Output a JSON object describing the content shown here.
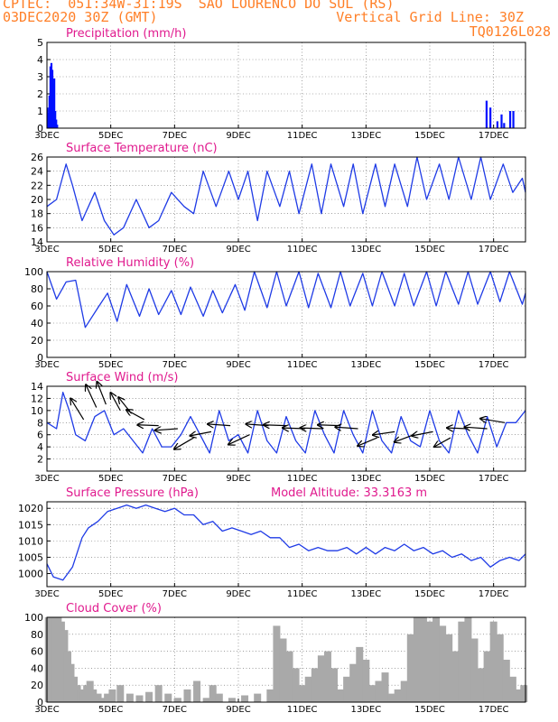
{
  "header": {
    "line1_left": "CPTEC:  051:34W-31:19S  SAO LOURENCO DO SUL (RS)",
    "line2_left": "03DEC2020 30Z (GMT)",
    "line2_right": "Vertical Grid Line: 30Z",
    "line3_right": "TQ0126L028"
  },
  "colors": {
    "header": "#ff7f27",
    "title": "#e01a8e",
    "line": "#1f3be6",
    "bars": "#0010ff",
    "cloud": "#a9a9a9",
    "wind_arrow": "#000000"
  },
  "x_ticks": [
    "3DEC",
    "5DEC",
    "7DEC",
    "9DEC",
    "11DEC",
    "13DEC",
    "15DEC",
    "17DEC"
  ],
  "x_range_days": [
    0,
    15
  ],
  "chart_data": [
    {
      "type": "bar",
      "title": "Precipitation (mm/h)",
      "ylim": [
        0,
        5
      ],
      "yticks": [
        0,
        1,
        2,
        3,
        4,
        5
      ],
      "x": [
        0.02,
        0.05,
        0.08,
        0.11,
        0.14,
        0.17,
        0.2,
        0.23,
        0.26,
        0.29,
        0.32,
        13.78,
        13.9,
        14.12,
        14.25,
        14.33,
        14.52,
        14.62
      ],
      "values": [
        1.2,
        0.9,
        1.9,
        3.6,
        3.8,
        3.4,
        2.6,
        2.9,
        1.0,
        0.5,
        0.2,
        1.6,
        1.2,
        0.4,
        0.8,
        0.3,
        1.0,
        1.0
      ]
    },
    {
      "type": "line",
      "title": "Surface Temperature (nC)",
      "ylim": [
        14,
        26
      ],
      "yticks": [
        14,
        16,
        18,
        20,
        22,
        24,
        26
      ],
      "x": [
        0,
        0.3,
        0.6,
        0.8,
        1.1,
        1.5,
        1.8,
        2.1,
        2.4,
        2.8,
        3.2,
        3.5,
        3.9,
        4.3,
        4.6,
        4.9,
        5.3,
        5.7,
        6.0,
        6.3,
        6.6,
        6.9,
        7.3,
        7.6,
        7.9,
        8.3,
        8.6,
        8.9,
        9.3,
        9.6,
        9.9,
        10.3,
        10.6,
        10.9,
        11.3,
        11.6,
        11.9,
        12.3,
        12.6,
        12.9,
        13.3,
        13.6,
        13.9,
        14.3,
        14.6,
        14.9,
        15.0
      ],
      "values": [
        19,
        20,
        25,
        22,
        17,
        21,
        17,
        15,
        16,
        20,
        16,
        17,
        21,
        19,
        18,
        24,
        19,
        24,
        20,
        24,
        17,
        24,
        19,
        24,
        18,
        25,
        18,
        25,
        19,
        25,
        18,
        25,
        19,
        25,
        19,
        26,
        20,
        25,
        20,
        26,
        20,
        26,
        20,
        25,
        21,
        23,
        21
      ]
    },
    {
      "type": "line",
      "title": "Relative Humidity (%)",
      "ylim": [
        0,
        100
      ],
      "yticks": [
        0,
        20,
        40,
        60,
        80,
        100
      ],
      "x": [
        0,
        0.3,
        0.6,
        0.9,
        1.2,
        1.6,
        1.9,
        2.2,
        2.5,
        2.9,
        3.2,
        3.5,
        3.9,
        4.2,
        4.5,
        4.9,
        5.2,
        5.5,
        5.9,
        6.2,
        6.5,
        6.9,
        7.2,
        7.5,
        7.9,
        8.2,
        8.5,
        8.9,
        9.2,
        9.5,
        9.9,
        10.2,
        10.5,
        10.9,
        11.2,
        11.5,
        11.9,
        12.2,
        12.5,
        12.9,
        13.2,
        13.5,
        13.9,
        14.2,
        14.5,
        14.9,
        15.0
      ],
      "values": [
        100,
        68,
        88,
        90,
        35,
        58,
        75,
        42,
        85,
        48,
        80,
        50,
        78,
        50,
        82,
        48,
        78,
        52,
        85,
        55,
        100,
        58,
        100,
        60,
        100,
        58,
        98,
        58,
        100,
        60,
        98,
        60,
        100,
        60,
        98,
        60,
        100,
        60,
        100,
        62,
        100,
        62,
        100,
        65,
        100,
        62,
        75
      ]
    },
    {
      "type": "line",
      "title": "Surface Wind (m/s)",
      "ylim": [
        0,
        14
      ],
      "yticks": [
        2,
        4,
        6,
        8,
        10,
        12,
        14
      ],
      "x": [
        0,
        0.3,
        0.5,
        0.7,
        0.9,
        1.2,
        1.5,
        1.8,
        2.1,
        2.4,
        2.7,
        3.0,
        3.3,
        3.6,
        3.9,
        4.2,
        4.5,
        4.8,
        5.1,
        5.4,
        5.7,
        6.0,
        6.3,
        6.6,
        6.9,
        7.2,
        7.5,
        7.8,
        8.1,
        8.4,
        8.7,
        9.0,
        9.3,
        9.6,
        9.9,
        10.2,
        10.5,
        10.8,
        11.1,
        11.4,
        11.7,
        12.0,
        12.3,
        12.6,
        12.9,
        13.2,
        13.5,
        13.8,
        14.1,
        14.4,
        14.7,
        15.0
      ],
      "values": [
        8,
        7,
        13,
        10,
        6,
        5,
        9,
        10,
        6,
        7,
        5,
        3,
        7,
        4,
        4,
        6,
        9,
        6,
        3,
        10,
        5,
        6,
        3,
        10,
        5,
        3,
        9,
        5,
        3,
        10,
        6,
        3,
        10,
        6,
        3,
        10,
        5,
        3,
        9,
        5,
        4,
        10,
        5,
        3,
        10,
        6,
        3,
        9,
        4,
        8,
        8,
        10
      ],
      "arrows": {
        "x": [
          1.15,
          1.55,
          1.85,
          2.3,
          2.65,
          3.05,
          3.5,
          4.1,
          4.6,
          5.15,
          5.75,
          6.35,
          6.95,
          7.5,
          8.1,
          8.65,
          9.2,
          9.75,
          10.35,
          10.9,
          11.5,
          12.1,
          12.65,
          13.2,
          13.8,
          14.35
        ],
        "y": [
          8.5,
          10.5,
          11.0,
          10.0,
          9.5,
          8.5,
          7.5,
          7.0,
          5.5,
          6.5,
          7.5,
          6.0,
          7.5,
          7.5,
          7.0,
          7.0,
          7.5,
          7.0,
          5.5,
          6.5,
          6.0,
          6.5,
          5.5,
          7.0,
          7.0,
          8.0
        ],
        "u": [
          -1.6,
          -1.3,
          -1.1,
          -1.2,
          -1.6,
          -2.2,
          -2.6,
          -2.8,
          -2.4,
          -2.6,
          -2.8,
          -2.6,
          -2.8,
          -2.8,
          -2.8,
          -2.8,
          -2.8,
          -2.8,
          -2.4,
          -2.7,
          -2.4,
          -2.6,
          -2.0,
          -2.6,
          -2.8,
          -3.0
        ],
        "v": [
          2.6,
          2.8,
          2.8,
          2.2,
          2.0,
          1.2,
          0.1,
          -0.2,
          -1.4,
          -0.5,
          0.2,
          -1.2,
          0.2,
          0.1,
          0.1,
          0.1,
          0.1,
          0.2,
          -1.0,
          -0.4,
          -0.9,
          -0.5,
          -1.1,
          0.1,
          0.2,
          0.5
        ]
      }
    },
    {
      "type": "line",
      "title": "Surface Pressure (hPa)",
      "annotation": "Model Altitude: 33.3163 m",
      "ylim": [
        996,
        1022
      ],
      "yticks": [
        1000,
        1005,
        1010,
        1015,
        1020
      ],
      "x": [
        0,
        0.2,
        0.5,
        0.8,
        1.1,
        1.3,
        1.6,
        1.9,
        2.2,
        2.5,
        2.8,
        3.1,
        3.4,
        3.7,
        4.0,
        4.3,
        4.6,
        4.9,
        5.2,
        5.5,
        5.8,
        6.1,
        6.4,
        6.7,
        7.0,
        7.3,
        7.6,
        7.9,
        8.2,
        8.5,
        8.8,
        9.1,
        9.4,
        9.7,
        10.0,
        10.3,
        10.6,
        10.9,
        11.2,
        11.5,
        11.8,
        12.1,
        12.4,
        12.7,
        13.0,
        13.3,
        13.6,
        13.9,
        14.2,
        14.5,
        14.8,
        15.0
      ],
      "values": [
        1003,
        999,
        998,
        1002,
        1011,
        1014,
        1016,
        1019,
        1020,
        1021,
        1020,
        1021,
        1020,
        1019,
        1020,
        1018,
        1018,
        1015,
        1016,
        1013,
        1014,
        1013,
        1012,
        1013,
        1011,
        1011,
        1008,
        1009,
        1007,
        1008,
        1007,
        1007,
        1008,
        1006,
        1008,
        1006,
        1008,
        1007,
        1009,
        1007,
        1008,
        1006,
        1007,
        1005,
        1006,
        1004,
        1005,
        1002,
        1004,
        1005,
        1004,
        1006
      ]
    },
    {
      "type": "bar",
      "title": "Cloud Cover (%)",
      "ylim": [
        0,
        100
      ],
      "yticks": [
        0,
        20,
        40,
        60,
        80,
        100
      ],
      "x": [
        0.05,
        0.15,
        0.25,
        0.35,
        0.45,
        0.55,
        0.65,
        0.75,
        0.85,
        0.95,
        1.05,
        1.15,
        1.25,
        1.35,
        1.45,
        1.6,
        1.75,
        1.9,
        2.05,
        2.3,
        2.6,
        2.9,
        3.2,
        3.5,
        3.8,
        4.1,
        4.4,
        4.7,
        5.0,
        5.2,
        5.4,
        5.8,
        6.2,
        6.6,
        7.0,
        7.2,
        7.4,
        7.6,
        7.8,
        8.0,
        8.2,
        8.4,
        8.6,
        8.8,
        9.0,
        9.2,
        9.4,
        9.6,
        9.8,
        10.0,
        10.2,
        10.4,
        10.6,
        10.8,
        11.0,
        11.2,
        11.4,
        11.6,
        11.8,
        12.0,
        12.2,
        12.4,
        12.6,
        12.8,
        13.0,
        13.2,
        13.4,
        13.6,
        13.8,
        14.0,
        14.2,
        14.4,
        14.6,
        14.8,
        14.95
      ],
      "values": [
        100,
        100,
        100,
        100,
        95,
        85,
        60,
        45,
        30,
        20,
        15,
        12,
        20,
        25,
        15,
        10,
        5,
        10,
        15,
        20,
        10,
        8,
        12,
        20,
        10,
        5,
        15,
        25,
        5,
        20,
        10,
        5,
        8,
        10,
        15,
        90,
        75,
        60,
        40,
        20,
        30,
        40,
        55,
        60,
        40,
        15,
        30,
        45,
        65,
        50,
        20,
        25,
        35,
        10,
        15,
        25,
        80,
        100,
        100,
        95,
        100,
        90,
        80,
        60,
        95,
        100,
        75,
        40,
        60,
        95,
        80,
        50,
        30,
        15,
        20
      ]
    }
  ]
}
